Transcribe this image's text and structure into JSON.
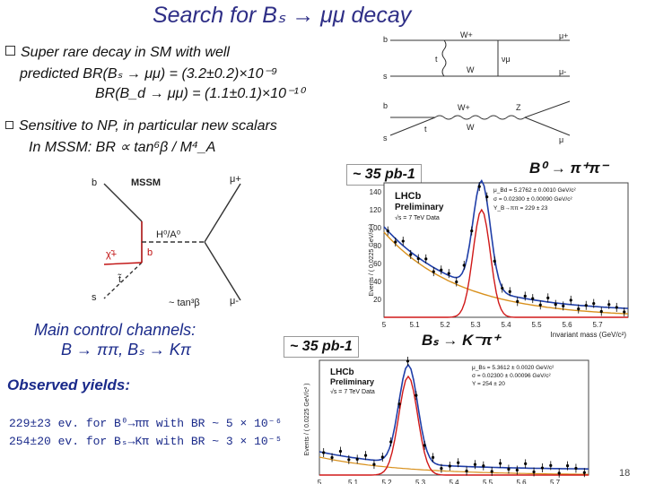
{
  "title": "Search for Bₛ → μμ decay",
  "bullet1": {
    "line1": "Super rare decay in SM with well",
    "line2": "predicted BR(Bₛ → μμ) = (3.2±0.2)×10⁻⁹",
    "line3": "BR(B_d → μμ) = (1.1±0.1)×10⁻¹⁰"
  },
  "bullet2": {
    "line1": "Sensitive to NP, in particular new scalars",
    "line2": "In MSSM: BR ∝ tan⁶β / M⁴_A"
  },
  "feynman_top": {
    "labels": [
      "b",
      "W+",
      "μ+",
      "s",
      "t",
      "W",
      "νμ",
      "μ-",
      "b",
      "W+",
      "Z",
      "s",
      "t",
      "W",
      "μ"
    ]
  },
  "feynman_mssm": {
    "title": "MSSM",
    "labels": [
      "b",
      "μ+",
      "H⁰/A⁰",
      "χ̃+",
      "b",
      "t̃",
      "s",
      "μ-",
      "~ tan³β"
    ]
  },
  "plot1": {
    "luminosity": "~ 35 pb-1",
    "channel": "B⁰ → π⁺π⁻",
    "legend_title": "LHCb",
    "legend_sub": "Preliminary",
    "energy": "√s = 7 TeV Data",
    "params": [
      "μ_Bd = 5.2762 ± 0.0010 GeV/c²",
      "σ = 0.02300 ± 0.00090 GeV/c²",
      "Y_B→ππ = 229 ± 23"
    ],
    "ylabel": "Events / ( 0.0225 GeV/c² )",
    "xlabel": "Invariant mass (GeV/c²)",
    "xticks": [
      "5",
      "5.1",
      "5.2",
      "5.3",
      "5.4",
      "5.5",
      "5.6",
      "5.7"
    ],
    "yticks": [
      "20",
      "40",
      "60",
      "80",
      "100",
      "120",
      "140"
    ]
  },
  "plot2": {
    "luminosity": "~ 35 pb-1",
    "channel": "Bₛ → K⁻π⁺",
    "legend_title": "LHCb",
    "legend_sub": "Preliminary",
    "energy": "√s = 7 TeV Data",
    "params": [
      "μ_Bs = 5.3612 ± 0.0020 GeV/c²",
      "σ = 0.02300 ± 0.00096 GeV/c²",
      "Y = 254 ± 20"
    ],
    "ylabel": "Events / ( 0.0225 GeV/c² )",
    "xticks": [
      "5",
      "5.1",
      "5.2",
      "5.3",
      "5.4",
      "5.5",
      "5.6",
      "5.7"
    ]
  },
  "main_control": {
    "line1": "Main control channels:",
    "line2": "B → ππ, Bₛ → Kπ"
  },
  "observed": {
    "heading": "Observed yields:",
    "line1": "229±23 ev. for B⁰→ππ with BR ~ 5 × 10⁻⁶",
    "line2": "254±20 ev. for Bₛ→Kπ with BR ~ 3 × 10⁻⁵"
  },
  "page_number": "18",
  "colors": {
    "title": "#2e2e86",
    "data_points": "#000000",
    "total_fit": "#1f3ea8",
    "signal_fit": "#d01818",
    "background_fit": "#d8901c"
  }
}
